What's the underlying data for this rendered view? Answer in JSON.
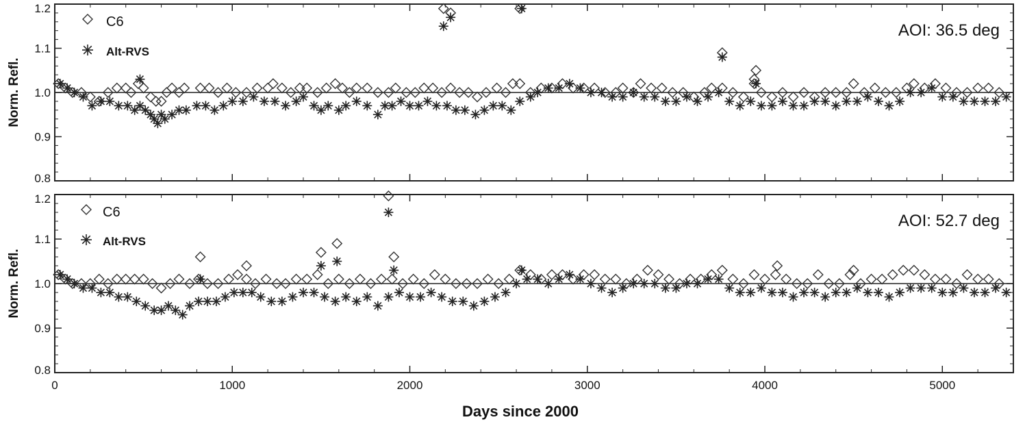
{
  "chart_data": [
    {
      "type": "scatter",
      "title": "",
      "annotation": "AOI: 36.5 deg",
      "xlabel": "",
      "ylabel": "Norm. Refl.",
      "xlim": [
        0,
        5400
      ],
      "ylim": [
        0.8,
        1.2
      ],
      "yticks": [
        "0.8",
        "0.9",
        "1.0",
        "1.1",
        "1.2"
      ],
      "xticks": [
        "0",
        "1000",
        "2000",
        "3000",
        "4000",
        "5000"
      ],
      "show_xtick_labels": false,
      "reference_line": 1.0,
      "legend": [
        "C6",
        "Alt-RVS"
      ],
      "legend_position": "top-left",
      "series": [
        {
          "name": "C6",
          "marker": "diamond",
          "x": [
            20,
            60,
            100,
            150,
            200,
            250,
            300,
            350,
            400,
            430,
            470,
            500,
            540,
            570,
            600,
            630,
            660,
            700,
            730,
            820,
            870,
            920,
            970,
            1020,
            1080,
            1140,
            1200,
            1230,
            1280,
            1330,
            1380,
            1420,
            1480,
            1530,
            1580,
            1620,
            1660,
            1700,
            1760,
            1820,
            1880,
            1920,
            1980,
            2030,
            2080,
            2130,
            2180,
            2230,
            2280,
            2330,
            2380,
            2430,
            2490,
            2540,
            2580,
            2620,
            2680,
            2740,
            2800,
            2860,
            2920,
            2980,
            3040,
            3100,
            3160,
            3200,
            3260,
            3300,
            3360,
            3420,
            3480,
            3540,
            3600,
            3660,
            3700,
            3760,
            3820,
            3880,
            3940,
            3980,
            4040,
            4100,
            4160,
            4220,
            4280,
            4340,
            4400,
            4460,
            4500,
            4560,
            4620,
            4680,
            4740,
            4800,
            4840,
            4900,
            4960,
            5020,
            5080,
            5140,
            5200,
            5260,
            5320,
            2190,
            2230,
            2620,
            3760,
            3940,
            3950
          ],
          "y": [
            1.02,
            1.01,
            1.0,
            1.0,
            0.99,
            0.98,
            1.0,
            1.01,
            1.01,
            1.0,
            1.02,
            1.01,
            0.99,
            0.98,
            0.98,
            1.0,
            1.01,
            1.0,
            1.01,
            1.01,
            1.01,
            1.0,
            1.01,
            1.0,
            1.0,
            1.01,
            1.01,
            1.02,
            1.01,
            1.0,
            1.01,
            1.01,
            1.0,
            1.01,
            1.02,
            1.01,
            1.0,
            1.01,
            1.01,
            1.0,
            1.0,
            1.01,
            1.0,
            1.0,
            1.01,
            1.01,
            1.0,
            1.01,
            1.0,
            1.0,
            0.99,
            1.0,
            1.01,
            1.0,
            1.02,
            1.02,
            1.0,
            1.01,
            1.01,
            1.02,
            1.01,
            1.01,
            1.01,
            1.0,
            1.0,
            1.01,
            1.0,
            1.02,
            1.01,
            1.01,
            1.0,
            1.0,
            0.99,
            1.0,
            1.01,
            1.01,
            1.0,
            0.99,
            1.02,
            1.0,
            0.99,
            1.0,
            0.99,
            1.0,
            0.99,
            1.0,
            1.0,
            1.0,
            1.02,
            1.0,
            1.01,
            1.0,
            1.0,
            1.01,
            1.02,
            1.01,
            1.02,
            1.01,
            1.0,
            1.0,
            1.01,
            1.01,
            1.0,
            1.19,
            1.18,
            1.19,
            1.09,
            1.03,
            1.05
          ]
        },
        {
          "name": "Alt-RVS",
          "marker": "asterisk",
          "x": [
            30,
            70,
            110,
            160,
            210,
            260,
            310,
            360,
            410,
            450,
            480,
            510,
            540,
            560,
            580,
            600,
            620,
            660,
            700,
            740,
            800,
            850,
            900,
            950,
            1000,
            1060,
            1120,
            1180,
            1240,
            1300,
            1360,
            1400,
            1460,
            1500,
            1540,
            1600,
            1640,
            1700,
            1760,
            1820,
            1860,
            1900,
            1950,
            2000,
            2050,
            2100,
            2150,
            2210,
            2260,
            2310,
            2370,
            2420,
            2470,
            2520,
            2570,
            2620,
            2680,
            2720,
            2780,
            2840,
            2900,
            2960,
            3020,
            3080,
            3140,
            3200,
            3260,
            3320,
            3380,
            3440,
            3500,
            3560,
            3620,
            3680,
            3740,
            3800,
            3860,
            3920,
            3980,
            4040,
            4100,
            4160,
            4220,
            4280,
            4340,
            4400,
            4460,
            4520,
            4580,
            4640,
            4700,
            4760,
            4820,
            4880,
            4940,
            5000,
            5060,
            5120,
            5180,
            5240,
            5300,
            5360,
            480,
            2190,
            2230,
            2630,
            3760,
            3950
          ],
          "y": [
            1.02,
            1.01,
            1.0,
            0.99,
            0.97,
            0.98,
            0.98,
            0.97,
            0.97,
            0.96,
            0.97,
            0.96,
            0.95,
            0.94,
            0.93,
            0.95,
            0.94,
            0.95,
            0.96,
            0.96,
            0.97,
            0.97,
            0.96,
            0.97,
            0.98,
            0.98,
            0.99,
            0.98,
            0.98,
            0.97,
            0.98,
            0.99,
            0.97,
            0.96,
            0.97,
            0.96,
            0.97,
            0.98,
            0.97,
            0.95,
            0.97,
            0.97,
            0.98,
            0.97,
            0.97,
            0.98,
            0.97,
            0.97,
            0.96,
            0.96,
            0.95,
            0.96,
            0.97,
            0.97,
            0.96,
            0.98,
            0.99,
            1.0,
            1.01,
            1.01,
            1.02,
            1.01,
            1.0,
            1.0,
            0.99,
            0.99,
            1.0,
            0.99,
            0.99,
            0.98,
            0.98,
            0.99,
            0.98,
            0.99,
            1.0,
            0.98,
            0.97,
            0.98,
            0.97,
            0.97,
            0.98,
            0.97,
            0.97,
            0.98,
            0.98,
            0.97,
            0.98,
            0.98,
            0.99,
            0.98,
            0.97,
            0.98,
            1.0,
            1.0,
            1.01,
            0.99,
            0.99,
            0.98,
            0.98,
            0.98,
            0.98,
            0.99,
            1.03,
            1.15,
            1.17,
            1.19,
            1.08,
            1.02
          ]
        }
      ]
    },
    {
      "type": "scatter",
      "title": "",
      "annotation": "AOI: 52.7 deg",
      "xlabel": "Days since 2000",
      "ylabel": "Norm. Refl.",
      "xlim": [
        0,
        5400
      ],
      "ylim": [
        0.8,
        1.2
      ],
      "yticks": [
        "0.8",
        "0.9",
        "1.0",
        "1.1",
        "1.2"
      ],
      "xticks": [
        "0",
        "1000",
        "2000",
        "3000",
        "4000",
        "5000"
      ],
      "show_xtick_labels": true,
      "reference_line": 1.0,
      "legend": [
        "C6",
        "Alt-RVS"
      ],
      "legend_position": "top-left",
      "series": [
        {
          "name": "C6",
          "marker": "diamond",
          "x": [
            20,
            60,
            100,
            150,
            200,
            250,
            300,
            350,
            400,
            450,
            500,
            550,
            600,
            650,
            700,
            760,
            810,
            860,
            920,
            980,
            1030,
            1080,
            1130,
            1190,
            1250,
            1300,
            1360,
            1420,
            1480,
            1540,
            1600,
            1660,
            1720,
            1780,
            1840,
            1900,
            1960,
            2020,
            2080,
            2140,
            2200,
            2260,
            2320,
            2380,
            2440,
            2500,
            2560,
            2620,
            2680,
            2740,
            2800,
            2860,
            2920,
            2980,
            3040,
            3100,
            3160,
            3220,
            3280,
            3340,
            3400,
            3460,
            3520,
            3580,
            3640,
            3700,
            3760,
            3820,
            3880,
            3940,
            4000,
            4060,
            4120,
            4180,
            4240,
            4300,
            4360,
            4420,
            4480,
            4540,
            4600,
            4660,
            4720,
            4780,
            4840,
            4900,
            4960,
            5020,
            5080,
            5140,
            5200,
            5260,
            5320,
            820,
            1080,
            1500,
            1590,
            1880,
            1910,
            4070,
            4500
          ],
          "y": [
            1.02,
            1.01,
            1.0,
            1.0,
            1.0,
            1.01,
            1.0,
            1.01,
            1.01,
            1.01,
            1.01,
            1.0,
            0.99,
            1.0,
            1.01,
            1.0,
            1.01,
            1.0,
            1.0,
            1.01,
            1.02,
            1.01,
            1.0,
            1.01,
            1.0,
            1.0,
            1.01,
            1.01,
            1.02,
            1.0,
            1.01,
            1.0,
            1.01,
            1.0,
            1.01,
            1.01,
            1.0,
            1.01,
            1.0,
            1.02,
            1.01,
            1.0,
            1.0,
            1.0,
            1.01,
            1.0,
            1.01,
            1.03,
            1.02,
            1.01,
            1.02,
            1.02,
            1.01,
            1.02,
            1.02,
            1.01,
            1.01,
            1.0,
            1.01,
            1.03,
            1.02,
            1.01,
            1.0,
            1.01,
            1.01,
            1.02,
            1.03,
            1.01,
            1.0,
            1.02,
            1.01,
            1.02,
            1.01,
            1.0,
            1.0,
            1.02,
            1.0,
            1.0,
            1.02,
            1.0,
            1.01,
            1.01,
            1.02,
            1.03,
            1.03,
            1.02,
            1.01,
            1.01,
            1.0,
            1.02,
            1.01,
            1.01,
            1.0,
            1.06,
            1.04,
            1.07,
            1.09,
            1.2,
            1.06,
            1.04,
            1.03
          ]
        },
        {
          "name": "Alt-RVS",
          "marker": "asterisk",
          "x": [
            30,
            70,
            110,
            160,
            210,
            260,
            310,
            360,
            410,
            460,
            510,
            560,
            600,
            640,
            680,
            720,
            760,
            810,
            860,
            910,
            960,
            1010,
            1060,
            1110,
            1160,
            1220,
            1280,
            1340,
            1400,
            1460,
            1520,
            1580,
            1640,
            1700,
            1760,
            1820,
            1880,
            1940,
            2000,
            2060,
            2120,
            2180,
            2240,
            2300,
            2360,
            2420,
            2480,
            2540,
            2600,
            2660,
            2720,
            2780,
            2840,
            2900,
            2960,
            3020,
            3080,
            3140,
            3200,
            3260,
            3320,
            3380,
            3440,
            3500,
            3560,
            3620,
            3680,
            3740,
            3800,
            3860,
            3920,
            3980,
            4040,
            4100,
            4160,
            4220,
            4280,
            4340,
            4400,
            4460,
            4520,
            4580,
            4640,
            4700,
            4760,
            4820,
            4880,
            4940,
            5000,
            5060,
            5120,
            5180,
            5240,
            5300,
            5360,
            1500,
            1590,
            1880,
            1910,
            820,
            2630
          ],
          "y": [
            1.02,
            1.01,
            1.0,
            0.99,
            0.99,
            0.98,
            0.98,
            0.97,
            0.97,
            0.96,
            0.95,
            0.94,
            0.94,
            0.95,
            0.94,
            0.93,
            0.95,
            0.96,
            0.96,
            0.96,
            0.97,
            0.98,
            0.98,
            0.98,
            0.97,
            0.96,
            0.96,
            0.97,
            0.98,
            0.98,
            0.97,
            0.96,
            0.97,
            0.96,
            0.97,
            0.95,
            0.97,
            0.98,
            0.97,
            0.97,
            0.98,
            0.97,
            0.96,
            0.96,
            0.95,
            0.96,
            0.97,
            0.98,
            1.0,
            1.01,
            1.01,
            1.0,
            1.01,
            1.02,
            1.01,
            1.0,
            0.99,
            0.98,
            0.99,
            1.0,
            1.0,
            1.0,
            0.99,
            0.99,
            1.0,
            1.0,
            1.01,
            1.01,
            0.99,
            0.98,
            0.98,
            0.99,
            0.98,
            0.98,
            0.97,
            0.98,
            0.98,
            0.97,
            0.98,
            0.98,
            0.99,
            0.98,
            0.98,
            0.97,
            0.98,
            0.99,
            0.99,
            0.99,
            0.98,
            0.98,
            0.99,
            0.98,
            0.98,
            0.99,
            0.98,
            1.04,
            1.05,
            1.16,
            1.03,
            1.01,
            1.03
          ]
        }
      ]
    }
  ]
}
